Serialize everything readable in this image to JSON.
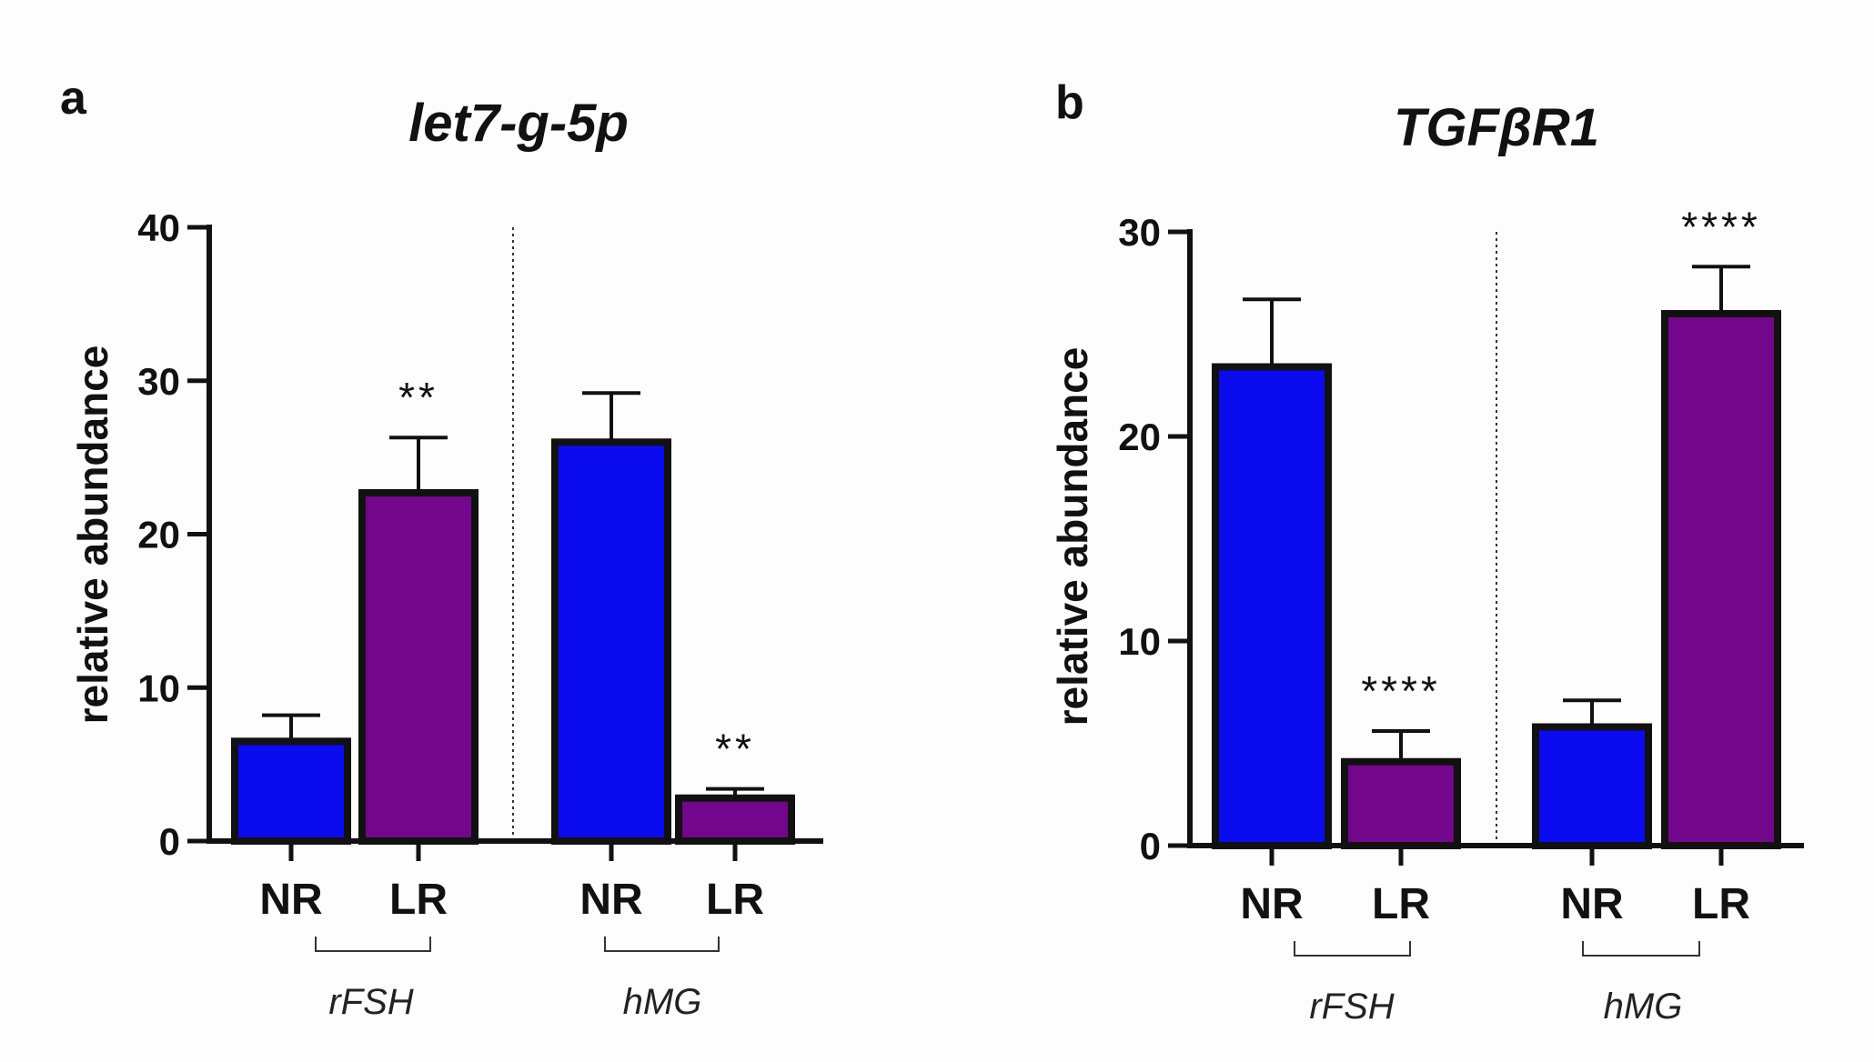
{
  "colors": {
    "NR": "#0b0bf0",
    "LR": "#73078c",
    "axis": "#111111"
  },
  "chart_data": [
    {
      "panel": "a",
      "type": "bar",
      "title": "let7-g-5p",
      "ylabel": "relative abundance",
      "ylim": [
        0,
        40
      ],
      "yticks": [
        0,
        10,
        20,
        30,
        40
      ],
      "groups": [
        {
          "label": "rFSH",
          "bars": [
            {
              "category": "NR",
              "value": 6.5,
              "error": 1.7,
              "sig": ""
            },
            {
              "category": "LR",
              "value": 22.7,
              "error": 3.6,
              "sig": "**"
            }
          ]
        },
        {
          "label": "hMG",
          "bars": [
            {
              "category": "NR",
              "value": 26.0,
              "error": 3.2,
              "sig": ""
            },
            {
              "category": "LR",
              "value": 2.8,
              "error": 0.6,
              "sig": "**"
            }
          ]
        }
      ]
    },
    {
      "panel": "b",
      "type": "bar",
      "title": "TGFβR1",
      "ylabel": "relative abundance",
      "ylim": [
        0,
        30
      ],
      "yticks": [
        0,
        10,
        20,
        30
      ],
      "groups": [
        {
          "label": "rFSH",
          "bars": [
            {
              "category": "NR",
              "value": 23.4,
              "error": 3.3,
              "sig": ""
            },
            {
              "category": "LR",
              "value": 4.1,
              "error": 1.5,
              "sig": "****"
            }
          ]
        },
        {
          "label": "hMG",
          "bars": [
            {
              "category": "NR",
              "value": 5.8,
              "error": 1.3,
              "sig": ""
            },
            {
              "category": "LR",
              "value": 26.0,
              "error": 2.3,
              "sig": "****"
            }
          ]
        }
      ]
    }
  ]
}
